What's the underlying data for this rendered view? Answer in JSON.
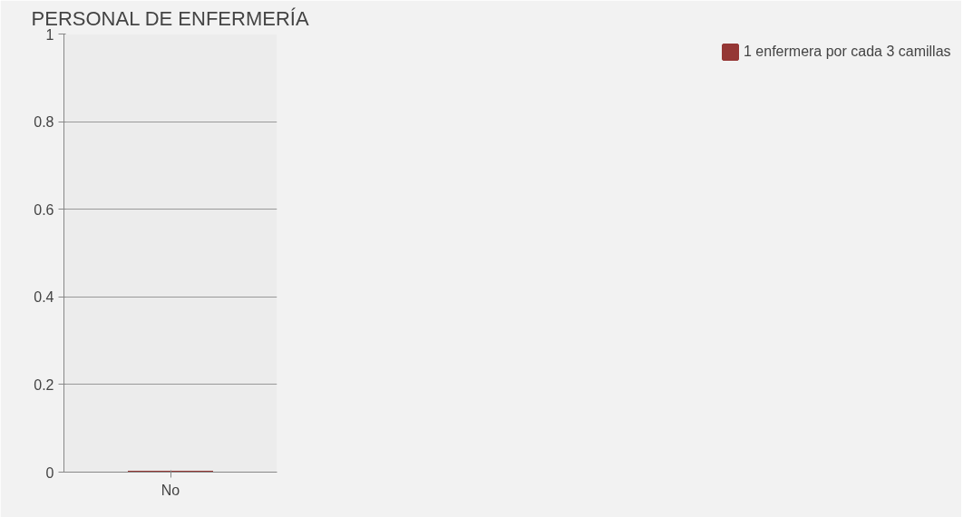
{
  "chart_data": {
    "type": "bar",
    "title": "PERSONAL DE ENFERMERÍA",
    "categories": [
      "No"
    ],
    "series": [
      {
        "name": "1 enfermera por cada 3 camillas",
        "color": "#953735",
        "values": [
          0
        ]
      }
    ],
    "ylim": [
      0,
      1
    ],
    "yticks": [
      0,
      0.2,
      0.4,
      0.6,
      0.8,
      1
    ],
    "grid": "y",
    "legend": "right"
  }
}
